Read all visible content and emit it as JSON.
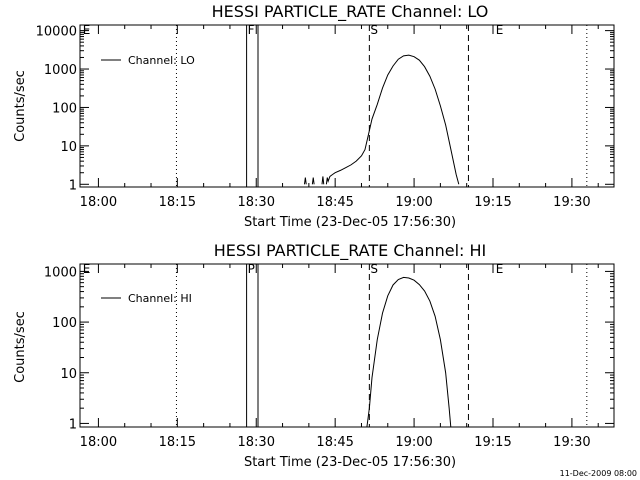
{
  "footer": {
    "timestamp": "11-Dec-2009 08:00"
  },
  "chart_data": [
    {
      "type": "line",
      "title": "HESSI PARTICLE_RATE Channel: LO",
      "xlabel": "Start Time (23-Dec-05 17:56:30)",
      "ylabel": "Counts/sec",
      "x_ticks": [
        "18:00",
        "18:15",
        "18:30",
        "18:45",
        "19:00",
        "19:15",
        "19:30"
      ],
      "y_ticks": [
        "1",
        "10",
        "100",
        "1000",
        "10000"
      ],
      "yscale": "log",
      "xlim": [
        "17:56:30",
        "19:38:00"
      ],
      "ylim": [
        0.85,
        14000
      ],
      "legend": {
        "label": "Channel: LO",
        "position": "top-left"
      },
      "grid": false,
      "flags": [
        {
          "label": "E",
          "time": "17:56:50",
          "style": "none"
        },
        {
          "label": "F",
          "time": "18:28:10",
          "style": "solid"
        },
        {
          "label": "",
          "time": "18:30:20",
          "style": "solid"
        },
        {
          "label": "S",
          "time": "18:51:30",
          "style": "dashed"
        },
        {
          "label": "",
          "time": "19:10:20",
          "style": "dashed"
        },
        {
          "label": "E",
          "time": "19:15:20",
          "style": "none"
        }
      ],
      "vlines_dotted": [
        "18:14:50",
        "19:32:50"
      ],
      "series": [
        {
          "name": "Channel: LO",
          "segments": [
            [
              [
                "18:39:10",
                1
              ],
              [
                "18:39:20",
                1.5
              ],
              [
                "18:39:30",
                1
              ]
            ],
            [
              [
                "18:40:40",
                1
              ],
              [
                "18:40:50",
                1.5
              ],
              [
                "18:41:00",
                1
              ]
            ],
            [
              [
                "18:42:30",
                1
              ],
              [
                "18:42:40",
                1.6
              ],
              [
                "18:42:50",
                1
              ]
            ],
            [
              [
                "18:43:20",
                1
              ],
              [
                "18:43:30",
                1.5
              ],
              [
                "18:43:40",
                1.2
              ],
              [
                "18:44:00",
                1.6
              ],
              [
                "18:44:30",
                1.8
              ],
              [
                "18:45:00",
                2.0
              ],
              [
                "18:46:00",
                2.3
              ],
              [
                "18:47:00",
                2.7
              ],
              [
                "18:48:00",
                3.2
              ],
              [
                "18:49:00",
                4.0
              ],
              [
                "18:50:00",
                5.5
              ],
              [
                "18:50:40",
                8
              ],
              [
                "18:51:30",
                25
              ],
              [
                "18:52:00",
                50
              ],
              [
                "18:53:00",
                120
              ],
              [
                "18:54:00",
                320
              ],
              [
                "18:55:00",
                700
              ],
              [
                "18:56:00",
                1200
              ],
              [
                "18:57:00",
                1800
              ],
              [
                "18:58:00",
                2200
              ],
              [
                "18:59:00",
                2300
              ],
              [
                "19:00:00",
                2100
              ],
              [
                "19:01:00",
                1700
              ],
              [
                "19:02:00",
                1150
              ],
              [
                "19:03:00",
                650
              ],
              [
                "19:04:00",
                300
              ],
              [
                "19:05:00",
                110
              ],
              [
                "19:06:00",
                35
              ],
              [
                "19:07:00",
                8
              ],
              [
                "19:08:00",
                1.8
              ],
              [
                "19:08:30",
                1
              ]
            ]
          ]
        }
      ]
    },
    {
      "type": "line",
      "title": "HESSI PARTICLE_RATE Channel: HI",
      "xlabel": "Start Time (23-Dec-05 17:56:30)",
      "ylabel": "Counts/sec",
      "x_ticks": [
        "18:00",
        "18:15",
        "18:30",
        "18:45",
        "19:00",
        "19:15",
        "19:30"
      ],
      "y_ticks": [
        "1",
        "10",
        "100",
        "1000"
      ],
      "yscale": "log",
      "xlim": [
        "17:56:30",
        "19:38:00"
      ],
      "ylim": [
        0.85,
        1400
      ],
      "legend": {
        "label": "Channel: HI",
        "position": "top-left"
      },
      "grid": false,
      "flags": [
        {
          "label": "E",
          "time": "17:56:50",
          "style": "none"
        },
        {
          "label": "P",
          "time": "18:28:10",
          "style": "solid"
        },
        {
          "label": "",
          "time": "18:30:20",
          "style": "solid"
        },
        {
          "label": "S",
          "time": "18:51:30",
          "style": "dashed"
        },
        {
          "label": "",
          "time": "19:10:20",
          "style": "dashed"
        },
        {
          "label": "E",
          "time": "19:15:20",
          "style": "none"
        }
      ],
      "vlines_dotted": [
        "18:14:50",
        "19:32:50"
      ],
      "series": [
        {
          "name": "Channel: HI",
          "segments": [
            [
              [
                "18:51:00",
                0.8
              ],
              [
                "18:51:30",
                2
              ],
              [
                "18:52:00",
                8
              ],
              [
                "18:53:00",
                45
              ],
              [
                "18:54:00",
                150
              ],
              [
                "18:55:00",
                330
              ],
              [
                "18:56:00",
                540
              ],
              [
                "18:57:00",
                690
              ],
              [
                "18:58:00",
                760
              ],
              [
                "18:59:00",
                740
              ],
              [
                "19:00:00",
                670
              ],
              [
                "19:01:00",
                550
              ],
              [
                "19:02:00",
                410
              ],
              [
                "19:03:00",
                260
              ],
              [
                "19:04:00",
                130
              ],
              [
                "19:05:00",
                45
              ],
              [
                "19:06:00",
                10
              ],
              [
                "19:06:40",
                2
              ],
              [
                "19:07:00",
                0.8
              ]
            ]
          ]
        }
      ]
    }
  ]
}
